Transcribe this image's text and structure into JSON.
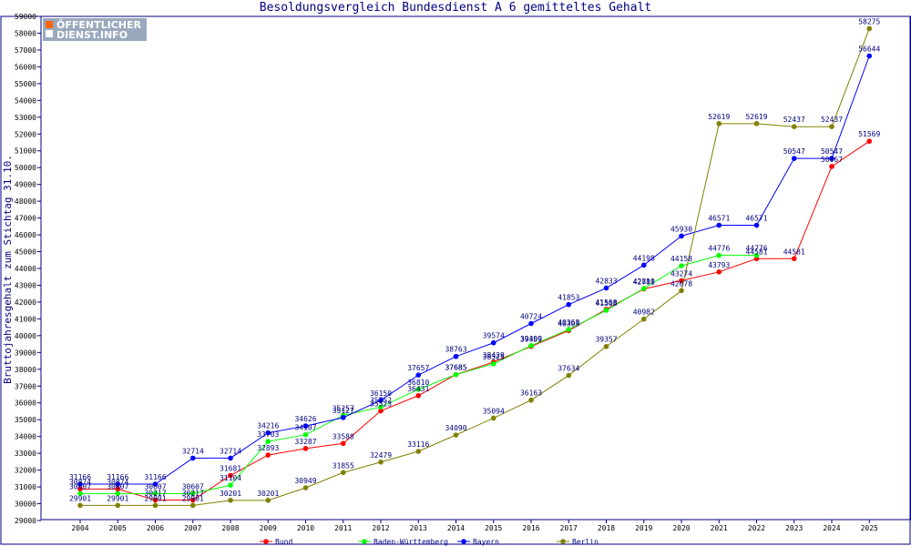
{
  "chart_data": {
    "type": "line",
    "title": "Besoldungsvergleich Bundesdienst A 6 gemitteltes Gehalt",
    "xlabel": "",
    "ylabel": "Bruttojahresgehalt zum Stichtag 31.10.",
    "ylim": [
      29000,
      59000
    ],
    "yticks": [
      29000,
      30000,
      31000,
      32000,
      33000,
      34000,
      35000,
      36000,
      37000,
      38000,
      39000,
      40000,
      41000,
      42000,
      43000,
      44000,
      45000,
      46000,
      47000,
      48000,
      49000,
      50000,
      51000,
      52000,
      53000,
      54000,
      55000,
      56000,
      57000,
      58000,
      59000
    ],
    "categories": [
      "2004",
      "2005",
      "2006",
      "2007",
      "2008",
      "2009",
      "2010",
      "2011",
      "2012",
      "2013",
      "2014",
      "2015",
      "2016",
      "2017",
      "2018",
      "2019",
      "2020",
      "2021",
      "2022",
      "2023",
      "2024",
      "2025"
    ],
    "series": [
      {
        "name": "Bund",
        "color": "#ff0000",
        "values": [
          30874,
          30874,
          30217,
          30217,
          31681,
          32893,
          33287,
          33588,
          35523,
          36431,
          37685,
          38429,
          39359,
          40303,
          41568,
          42781,
          43274,
          43793,
          44581,
          44581,
          50067,
          51569
        ]
      },
      {
        "name": "Baden-Württemberg",
        "color": "#00ff00",
        "values": [
          30607,
          30607,
          30607,
          30607,
          31104,
          33703,
          34107,
          35257,
          35752,
          36810,
          37685,
          38325,
          39409,
          40368,
          41508,
          42810,
          44158,
          44776,
          44776,
          null,
          null,
          null
        ]
      },
      {
        "name": "Bayern",
        "color": "#0000ff",
        "values": [
          31166,
          31166,
          31166,
          32714,
          32714,
          34216,
          34626,
          35127,
          36150,
          37657,
          38763,
          39574,
          40724,
          41853,
          42833,
          44198,
          45930,
          46571,
          46571,
          50547,
          50547,
          56644
        ]
      },
      {
        "name": "Berlin",
        "color": "#808000",
        "values": [
          29901,
          29901,
          29901,
          29901,
          30201,
          30201,
          30949,
          31855,
          32479,
          33116,
          34090,
          35094,
          36163,
          37634,
          39357,
          40982,
          42678,
          52619,
          52619,
          52437,
          52437,
          58275
        ]
      }
    ],
    "legend": "bottom",
    "grid": false
  },
  "logo": {
    "line1": "ÖFFENTLICHER",
    "line2": "DIENST.INFO"
  }
}
